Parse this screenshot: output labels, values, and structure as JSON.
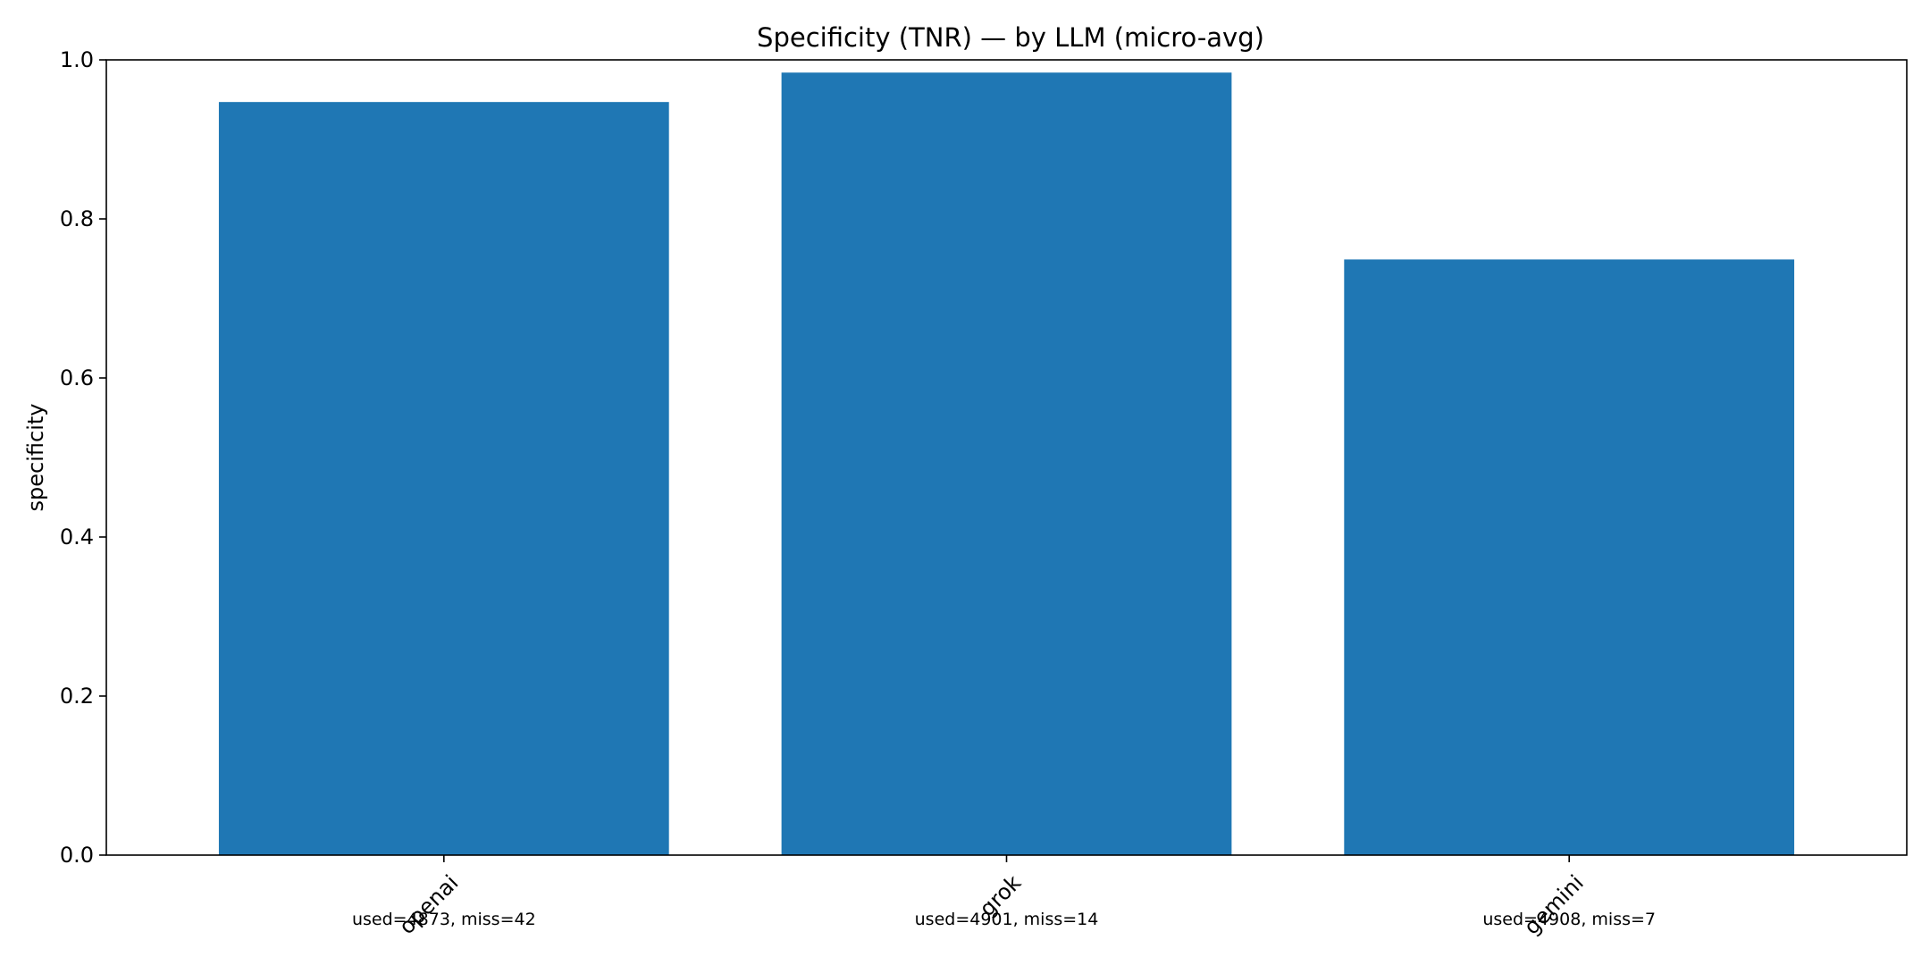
{
  "chart_data": {
    "type": "bar",
    "title": "Specificity (TNR) — by LLM (micro-avg)",
    "xlabel": "",
    "ylabel": "specificity",
    "ylim": [
      0,
      1.0
    ],
    "yticks": [
      "0.0",
      "0.2",
      "0.4",
      "0.6",
      "0.8",
      "1.0"
    ],
    "categories": [
      "openai",
      "grok",
      "gemini"
    ],
    "values": [
      0.947,
      0.984,
      0.749
    ],
    "annotations": [
      "used=4873, miss=42",
      "used=4901, miss=14",
      "used=4908, miss=7"
    ],
    "bar_color": "#1f77b4",
    "grid": false,
    "legend": "none"
  }
}
